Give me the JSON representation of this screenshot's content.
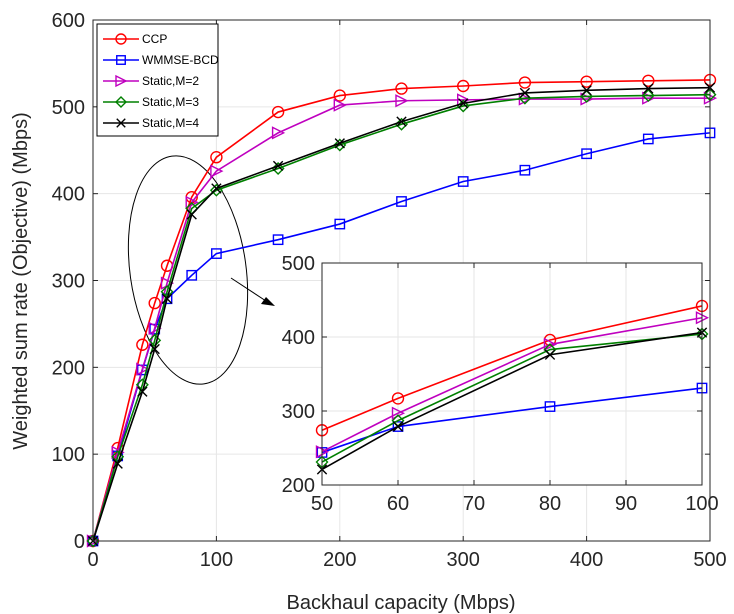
{
  "chart_data": {
    "type": "line",
    "xlabel": "Backhaul capacity (Mbps)",
    "ylabel": "Weighted sum rate (Objective) (Mbps)",
    "xlim": [
      0,
      500
    ],
    "ylim": [
      0,
      600
    ],
    "xticks": [
      0,
      100,
      200,
      300,
      400,
      500
    ],
    "yticks": [
      0,
      100,
      200,
      300,
      400,
      500,
      600
    ],
    "legend_position": "top-left",
    "series": [
      {
        "name": "CCP",
        "color": "#ff0000",
        "marker": "circle",
        "x": [
          0,
          20,
          40,
          50,
          60,
          80,
          100,
          150,
          200,
          250,
          300,
          350,
          400,
          450,
          500
        ],
        "y": [
          0,
          107,
          226,
          274,
          317,
          396,
          442,
          494,
          513,
          521,
          524,
          528,
          529,
          530,
          531
        ]
      },
      {
        "name": "WMMSE-BCD",
        "color": "#0000ff",
        "marker": "square",
        "x": [
          0,
          20,
          40,
          50,
          60,
          80,
          100,
          150,
          200,
          250,
          300,
          350,
          400,
          450,
          500
        ],
        "y": [
          0,
          98,
          197,
          244,
          279,
          306,
          331,
          347,
          365,
          391,
          414,
          427,
          446,
          463,
          470
        ]
      },
      {
        "name": "Static,M=2",
        "color": "#bf00bf",
        "marker": "triangle-right",
        "x": [
          0,
          20,
          40,
          50,
          60,
          80,
          100,
          150,
          200,
          250,
          300,
          350,
          400,
          450,
          500
        ],
        "y": [
          0,
          102,
          198,
          245,
          297,
          390,
          426,
          470,
          502,
          507,
          508,
          509,
          509,
          510,
          510
        ]
      },
      {
        "name": "Static,M=3",
        "color": "#008000",
        "marker": "diamond",
        "x": [
          0,
          20,
          40,
          50,
          60,
          80,
          100,
          150,
          200,
          250,
          300,
          350,
          400,
          450,
          500
        ],
        "y": [
          0,
          97,
          180,
          231,
          287,
          383,
          404,
          429,
          456,
          480,
          501,
          510,
          512,
          513,
          514
        ]
      },
      {
        "name": "Static,M=4",
        "color": "#000000",
        "marker": "x",
        "x": [
          0,
          20,
          40,
          50,
          60,
          80,
          100,
          150,
          200,
          250,
          300,
          350,
          400,
          450,
          500
        ],
        "y": [
          0,
          89,
          172,
          221,
          279,
          376,
          406,
          432,
          458,
          483,
          504,
          516,
          519,
          521,
          522
        ]
      }
    ],
    "inset": {
      "xlim": [
        50,
        100
      ],
      "ylim": [
        200,
        500
      ],
      "xticks": [
        50,
        60,
        70,
        80,
        90,
        100
      ],
      "yticks": [
        200,
        300,
        400,
        500
      ]
    }
  }
}
